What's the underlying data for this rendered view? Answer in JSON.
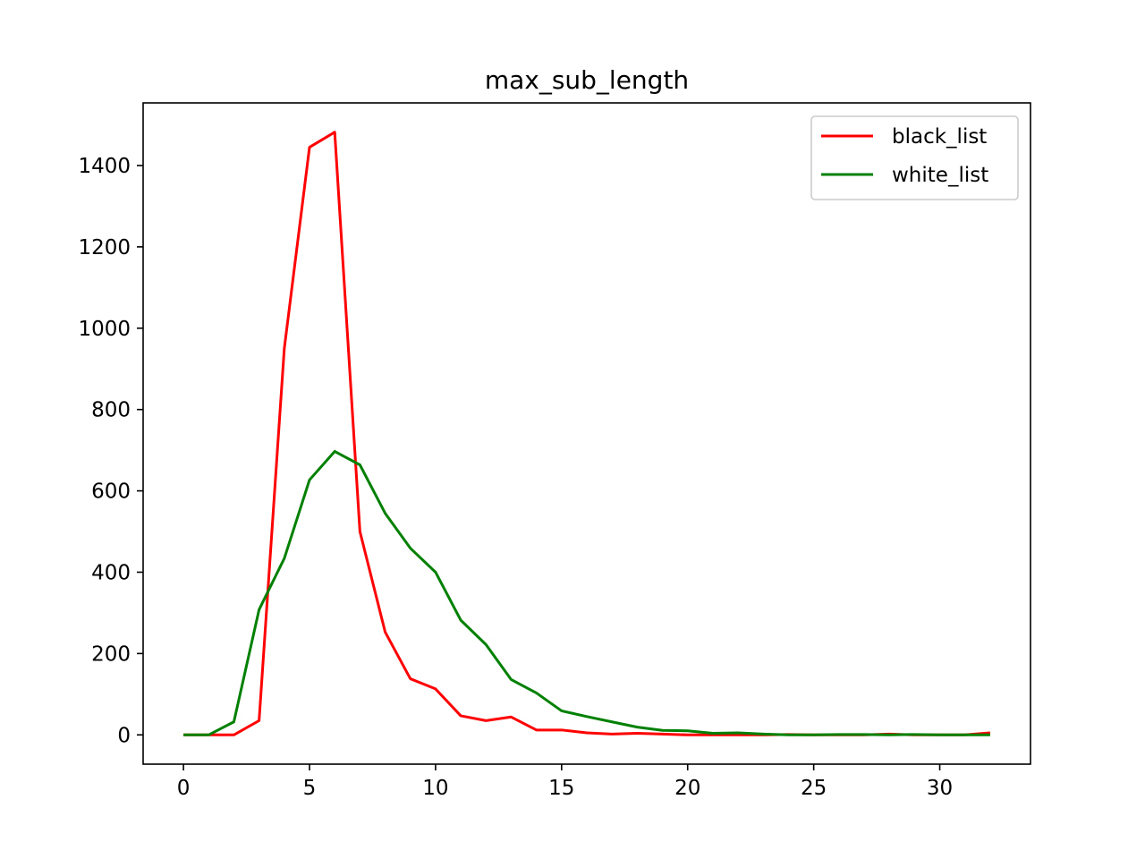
{
  "chart_data": {
    "type": "line",
    "title": "max_sub_length",
    "xlabel": "",
    "ylabel": "",
    "x": [
      0,
      1,
      2,
      3,
      4,
      5,
      6,
      7,
      8,
      9,
      10,
      11,
      12,
      13,
      14,
      15,
      16,
      17,
      18,
      19,
      20,
      21,
      22,
      23,
      24,
      25,
      26,
      27,
      28,
      29,
      30,
      31,
      32
    ],
    "xlim": [
      -1.6,
      33.6
    ],
    "ylim": [
      -72,
      1554
    ],
    "xticks": [
      0,
      5,
      10,
      15,
      20,
      25,
      30
    ],
    "yticks": [
      0,
      200,
      400,
      600,
      800,
      1000,
      1200,
      1400
    ],
    "grid": false,
    "legend_position": "upper right",
    "series": [
      {
        "name": "black_list",
        "color": "#ff0000",
        "values": [
          0,
          0,
          0,
          35,
          950,
          1445,
          1482,
          500,
          253,
          138,
          113,
          47,
          35,
          44,
          12,
          12,
          5,
          2,
          4,
          2,
          0,
          0,
          0,
          0,
          1,
          0,
          0,
          0,
          2,
          0,
          0,
          0,
          5
        ]
      },
      {
        "name": "white_list",
        "color": "#008000",
        "values": [
          0,
          0,
          32,
          308,
          434,
          627,
          697,
          664,
          545,
          459,
          400,
          282,
          222,
          136,
          103,
          59,
          45,
          32,
          19,
          11,
          10,
          4,
          5,
          2,
          0,
          0,
          1,
          1,
          0,
          1,
          0,
          0,
          0
        ]
      }
    ]
  }
}
